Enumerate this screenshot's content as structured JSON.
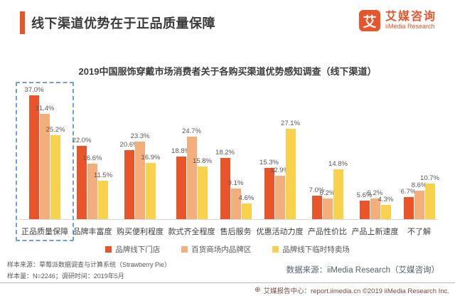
{
  "header": {
    "title": "线下渠道优势在于正品质量保障"
  },
  "logo": {
    "mark": "艾",
    "name_cn": "艾媒咨询",
    "name_en": "iiMedia Research",
    "brand_color": "#E8552B"
  },
  "chart_data": {
    "type": "bar",
    "title": "2019中国服饰穿戴市场消费者关于各购买渠道优势感知调查（线下渠道）",
    "categories": [
      "正品质量保障",
      "品牌丰富度",
      "购买便利程度",
      "款式齐全程度",
      "售后服务",
      "优惠活动力度",
      "产品性价比",
      "产品上新速度",
      "不了解"
    ],
    "series": [
      {
        "name": "品牌线下门店",
        "color": "#E8552B",
        "values": [
          37.0,
          22.0,
          20.6,
          18.8,
          18.2,
          15.3,
          7.0,
          5.6,
          6.7
        ]
      },
      {
        "name": "百货商场内品牌区",
        "color": "#F3AE7B",
        "values": [
          31.4,
          16.6,
          23.3,
          24.7,
          9.1,
          12.9,
          6.2,
          6.2,
          8.6
        ]
      },
      {
        "name": "品牌线下临时特卖场",
        "color": "#F9D24D",
        "values": [
          25.2,
          11.5,
          16.9,
          15.8,
          4.6,
          27.1,
          14.8,
          4.3,
          10.7
        ]
      }
    ],
    "value_suffix": "%",
    "ylim": [
      0,
      40
    ],
    "grid": false,
    "legend_position": "bottom",
    "highlight_category_index": 0,
    "highlight_border_color": "#6FA0D9",
    "xlabel": "",
    "ylabel": ""
  },
  "footnotes": {
    "line1": "样本来源：草莓派数据调查与计算系统（Strawberry Pie）",
    "line2": "样本量：N=2246；调研时间：2019年5月"
  },
  "data_source": "数据来源：iiMedia Research（艾媒咨询）",
  "footer": {
    "icon_glyph": "⊕",
    "text": "艾媒报告中心：report.iimedia.cn  ©2019  iiMedia Research Inc."
  }
}
